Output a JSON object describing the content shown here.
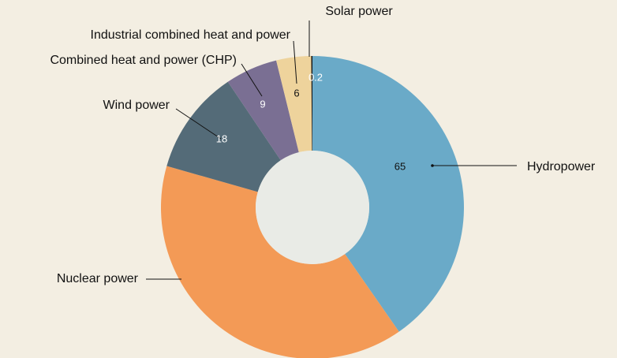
{
  "chart_data": {
    "type": "pie",
    "categories": [
      "Hydropower",
      "Nuclear power",
      "Wind power",
      "Combined heat and power (CHP)",
      "Industrial combined heat and power",
      "Solar power"
    ],
    "values": [
      65,
      63,
      18,
      9,
      6,
      0.2
    ],
    "value_labels": [
      "65",
      null,
      "18",
      "9",
      "6",
      "0.2"
    ],
    "colors": [
      "#6aaac8",
      "#f39a56",
      "#546b78",
      "#7a6f93",
      "#eed39c",
      "#111111"
    ]
  }
}
